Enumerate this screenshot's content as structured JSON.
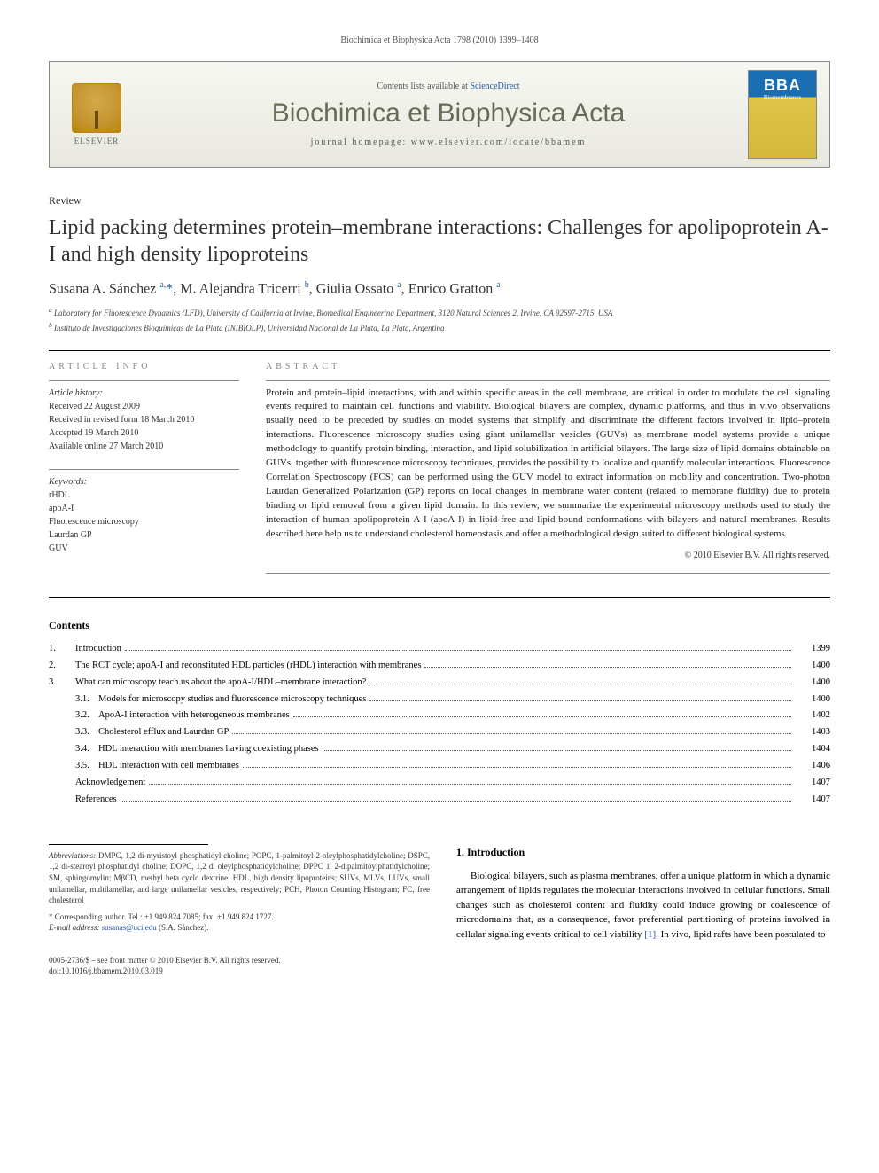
{
  "running_header": "Biochimica et Biophysica Acta 1798 (2010) 1399–1408",
  "banner": {
    "contents_prefix": "Contents lists available at ",
    "contents_link": "ScienceDirect",
    "journal_name": "Biochimica et Biophysica Acta",
    "homepage_prefix": "journal homepage: ",
    "homepage_url": "www.elsevier.com/locate/bbamem",
    "elsevier_label": "ELSEVIER",
    "cover_main": "BBA",
    "cover_sub": "Biomembranes"
  },
  "article": {
    "type": "Review",
    "title": "Lipid packing determines protein–membrane interactions: Challenges for apolipoprotein A-I and high density lipoproteins",
    "authors_html": "Susana A. Sánchez <sup>a,</sup><span class='star'>*</span>, M. Alejandra Tricerri <sup>b</sup>, Giulia Ossato <sup>a</sup>, Enrico Gratton <sup>a</sup>",
    "affiliations": [
      "a Laboratory for Fluorescence Dynamics (LFD), University of California at Irvine, Biomedical Engineering Department, 3120 Natural Sciences 2, Irvine, CA 92697-2715, USA",
      "b Instituto de Investigaciones Bioquímicas de La Plata (INIBIOLP), Universidad Nacional de La Plata, La Plata, Argentina"
    ]
  },
  "info": {
    "section_label": "ARTICLE INFO",
    "history_title": "Article history:",
    "history": [
      "Received 22 August 2009",
      "Received in revised form 18 March 2010",
      "Accepted 19 March 2010",
      "Available online 27 March 2010"
    ],
    "keywords_title": "Keywords:",
    "keywords": [
      "rHDL",
      "apoA-I",
      "Fluorescence microscopy",
      "Laurdan GP",
      "GUV"
    ]
  },
  "abstract": {
    "section_label": "ABSTRACT",
    "text": "Protein and protein–lipid interactions, with and within specific areas in the cell membrane, are critical in order to modulate the cell signaling events required to maintain cell functions and viability. Biological bilayers are complex, dynamic platforms, and thus in vivo observations usually need to be preceded by studies on model systems that simplify and discriminate the different factors involved in lipid–protein interactions. Fluorescence microscopy studies using giant unilamellar vesicles (GUVs) as membrane model systems provide a unique methodology to quantify protein binding, interaction, and lipid solubilization in artificial bilayers. The large size of lipid domains obtainable on GUVs, together with fluorescence microscopy techniques, provides the possibility to localize and quantify molecular interactions. Fluorescence Correlation Spectroscopy (FCS) can be performed using the GUV model to extract information on mobility and concentration. Two-photon Laurdan Generalized Polarization (GP) reports on local changes in membrane water content (related to membrane fluidity) due to protein binding or lipid removal from a given lipid domain. In this review, we summarize the experimental microscopy methods used to study the interaction of human apolipoprotein A-I (apoA-I) in lipid-free and lipid-bound conformations with bilayers and natural membranes. Results described here help us to understand cholesterol homeostasis and offer a methodological design suited to different biological systems.",
    "copyright": "© 2010 Elsevier B.V. All rights reserved."
  },
  "contents": {
    "heading": "Contents",
    "items": [
      {
        "num": "1.",
        "label": "Introduction",
        "page": "1399",
        "indent": 0
      },
      {
        "num": "2.",
        "label": "The RCT cycle; apoA-I and reconstituted HDL particles (rHDL) interaction with membranes",
        "page": "1400",
        "indent": 0
      },
      {
        "num": "3.",
        "label": "What can microscopy teach us about the apoA-I/HDL–membrane interaction?",
        "page": "1400",
        "indent": 0
      },
      {
        "num": "3.1.",
        "label": "Models for microscopy studies and fluorescence microscopy techniques",
        "page": "1400",
        "indent": 1
      },
      {
        "num": "3.2.",
        "label": "ApoA-I interaction with heterogeneous membranes",
        "page": "1402",
        "indent": 1
      },
      {
        "num": "3.3.",
        "label": "Cholesterol efflux and Laurdan GP",
        "page": "1403",
        "indent": 1
      },
      {
        "num": "3.4.",
        "label": "HDL interaction with membranes having coexisting phases",
        "page": "1404",
        "indent": 1
      },
      {
        "num": "3.5.",
        "label": "HDL interaction with cell membranes",
        "page": "1406",
        "indent": 1
      },
      {
        "num": "",
        "label": "Acknowledgement",
        "page": "1407",
        "indent": 0
      },
      {
        "num": "",
        "label": "References",
        "page": "1407",
        "indent": 0
      }
    ]
  },
  "footnotes": {
    "abbrev_label": "Abbreviations:",
    "abbrev_text": " DMPC, 1,2 di-myristoyl phosphatidyl choline; POPC, 1-palmitoyl-2-oleylphosphatidylcholine; DSPC, 1,2 di-stearoyl phosphatidyl choline; DOPC, 1,2 di oleylphosphatidylcholine; DPPC 1, 2-dipalmitoylphatidylcholine; SM, sphingomylin; MβCD, methyl beta cyclo dextrine; HDL, high density lipoproteins; SUVs, MLVs, LUVs, small unilamellar, multilamellar, and large unilamellar vesicles, respectively; PCH, Photon Counting Histogram; FC, free cholesterol",
    "corr_label": "* Corresponding author. ",
    "corr_text": "Tel.: +1 949 824 7085; fax: +1 949 824 1727.",
    "email_label": "E-mail address: ",
    "email": "susanas@uci.edu",
    "email_suffix": " (S.A. Sánchez)."
  },
  "intro": {
    "heading": "1. Introduction",
    "text_part1": "Biological bilayers, such as plasma membranes, offer a unique platform in which a dynamic arrangement of lipids regulates the molecular interactions involved in cellular functions. Small changes such as cholesterol content and fluidity could induce growing or coalescence of microdomains that, as a consequence, favor preferential partitioning of proteins involved in cellular signaling events critical to cell viability ",
    "ref": "[1]",
    "text_part2": ". In vivo, lipid rafts have been postulated to"
  },
  "doi": {
    "line1": "0005-2736/$ – see front matter © 2010 Elsevier B.V. All rights reserved.",
    "line2": "doi:10.1016/j.bbamem.2010.03.019"
  },
  "colors": {
    "link": "#2659a6",
    "banner_bg_top": "#f7f7f2",
    "banner_bg_bot": "#e8e8e0",
    "journal_name": "#6a6a58",
    "elsevier_gold": "#c49530",
    "cover_blue": "#1a6fb4",
    "cover_gold": "#d4b838"
  }
}
